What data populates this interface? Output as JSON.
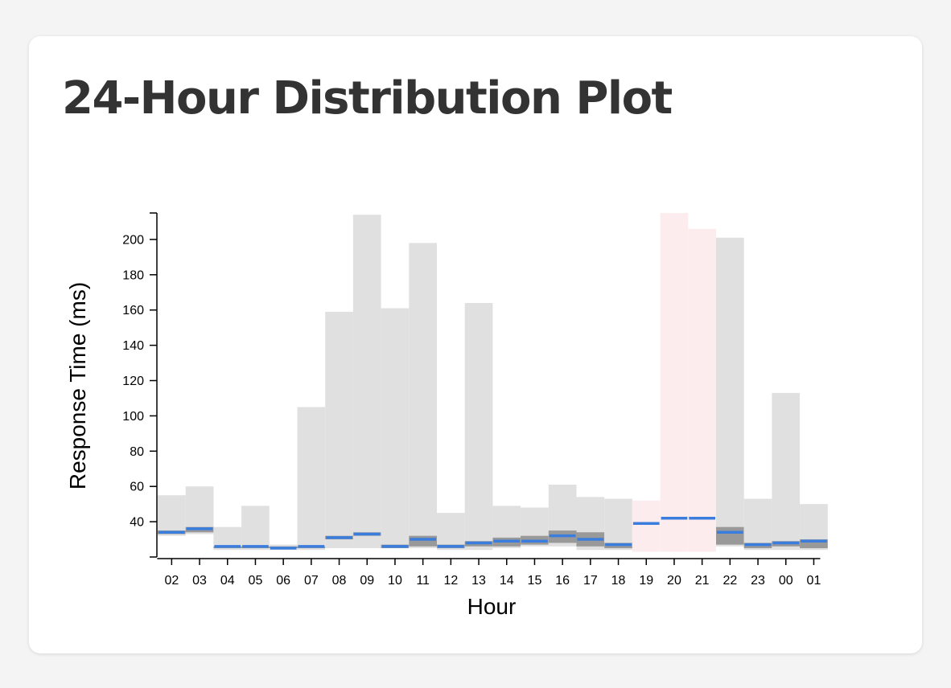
{
  "page": {
    "title": "24-Hour Distribution Plot"
  },
  "colors": {
    "range": "#e0e0e0",
    "iqr": "#999999",
    "median": "#3b7ddd",
    "highlight": "#fdecee",
    "background": "#f4f4f4",
    "card": "#ffffff"
  },
  "chart_data": {
    "type": "bar",
    "description_keys": [
      "min",
      "q1",
      "median",
      "q3",
      "max"
    ],
    "xlabel": "Hour",
    "ylabel": "Response Time (ms)",
    "ylim": [
      20,
      215
    ],
    "yticks": [
      40,
      60,
      80,
      100,
      120,
      140,
      160,
      180,
      200
    ],
    "categories": [
      "02",
      "03",
      "04",
      "05",
      "06",
      "07",
      "08",
      "09",
      "10",
      "11",
      "12",
      "13",
      "14",
      "15",
      "16",
      "17",
      "18",
      "19",
      "20",
      "21",
      "22",
      "23",
      "00",
      "01"
    ],
    "highlighted": [
      "19",
      "20",
      "21"
    ],
    "series": [
      {
        "name": "",
        "key": "max",
        "values": [
          55,
          60,
          37,
          49,
          27,
          105,
          159,
          214,
          161,
          198,
          45,
          164,
          49,
          48,
          61,
          54,
          53,
          52,
          215,
          206,
          201,
          53,
          113,
          50
        ]
      },
      {
        "name": "",
        "key": "min",
        "values": [
          32,
          33,
          24,
          24,
          24,
          24,
          25,
          25,
          25,
          25,
          24,
          24,
          25,
          26,
          26,
          24,
          24,
          23,
          23,
          23,
          26,
          24,
          24,
          24
        ]
      },
      {
        "name": "",
        "key": "q1",
        "values": [
          33,
          34,
          25,
          25,
          25,
          25,
          30,
          32,
          25,
          26,
          25,
          26,
          26,
          27,
          28,
          26,
          25,
          37,
          40,
          40,
          27,
          25,
          26,
          25
        ]
      },
      {
        "name": "",
        "key": "median",
        "values": [
          34,
          36,
          26,
          26,
          25,
          26,
          31,
          33,
          26,
          30,
          26,
          28,
          29,
          29,
          32,
          30,
          27,
          39,
          42,
          42,
          34,
          27,
          28,
          29
        ]
      },
      {
        "name": "",
        "key": "q3",
        "values": [
          35,
          37,
          26,
          26,
          26,
          26,
          32,
          34,
          27,
          32,
          27,
          29,
          31,
          32,
          35,
          34,
          28,
          40,
          43,
          43,
          37,
          28,
          29,
          30
        ]
      }
    ]
  }
}
